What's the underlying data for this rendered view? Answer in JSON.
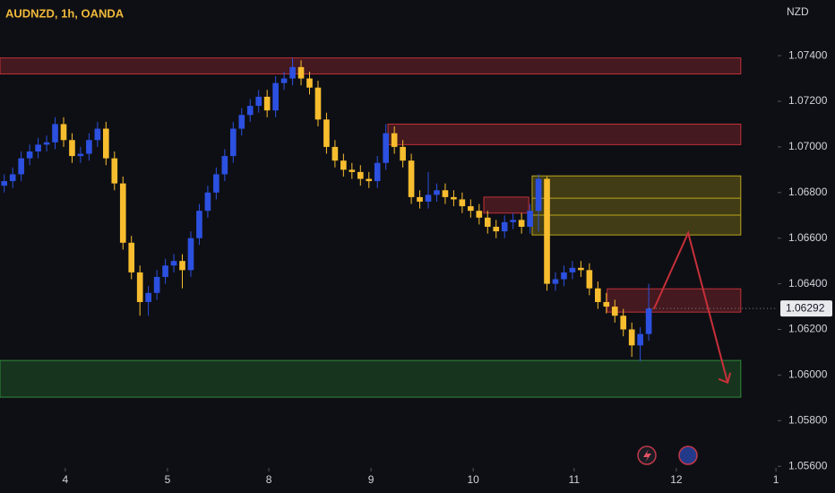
{
  "chart_data": {
    "type": "candlestick",
    "title": "AUDNZD, 1h, OANDA",
    "y_axis_label": "NZD",
    "up_color": "#2c50e0",
    "down_color": "#f7bd2e",
    "x": [
      0,
      2,
      4,
      6,
      8,
      10,
      12,
      14,
      16,
      18,
      20,
      22,
      24,
      26,
      28,
      30,
      32,
      34,
      36,
      38,
      40,
      42,
      44,
      46,
      48,
      50,
      52,
      54,
      56,
      58,
      60,
      62,
      64,
      66,
      68,
      70,
      72,
      74,
      76,
      78,
      80,
      82,
      84,
      86,
      88,
      90,
      92,
      94,
      96,
      98,
      100,
      102,
      104,
      106,
      108,
      110,
      112,
      114,
      116,
      118,
      120,
      122,
      124,
      126,
      128,
      130,
      132,
      134,
      136,
      138,
      140,
      142,
      144,
      146,
      148,
      150,
      152
    ],
    "open": [
      1.0683,
      1.0685,
      1.0688,
      1.0695,
      1.0698,
      1.0701,
      1.0702,
      1.071,
      1.0703,
      1.0696,
      1.0697,
      1.0703,
      1.0708,
      1.0695,
      1.0684,
      1.0658,
      1.0645,
      1.0632,
      1.0636,
      1.0643,
      1.0648,
      1.065,
      1.0646,
      1.066,
      1.0672,
      1.068,
      1.0688,
      1.0696,
      1.0708,
      1.0714,
      1.0718,
      1.0722,
      1.0716,
      1.0728,
      1.073,
      1.0735,
      1.073,
      1.0726,
      1.0712,
      1.07,
      1.0694,
      1.069,
      1.0689,
      1.0686,
      1.0685,
      1.0693,
      1.0706,
      1.07,
      1.0694,
      1.0678,
      1.0676,
      1.0679,
      1.0681,
      1.0678,
      1.0677,
      1.0674,
      1.0672,
      1.0669,
      1.0665,
      1.0663,
      1.0667,
      1.0668,
      1.0665,
      1.0672,
      1.0686,
      1.064,
      1.0642,
      1.0645,
      1.0647,
      1.0646,
      1.0638,
      1.0632,
      1.063,
      1.0626,
      1.062,
      1.0613,
      1.0618
    ],
    "high": [
      1.0688,
      1.0691,
      1.0698,
      1.0701,
      1.0704,
      1.0705,
      1.0713,
      1.0713,
      1.0706,
      1.07,
      1.0706,
      1.0711,
      1.0711,
      1.0698,
      1.0687,
      1.0661,
      1.0648,
      1.0639,
      1.0646,
      1.0651,
      1.0653,
      1.0653,
      1.0663,
      1.0675,
      1.0683,
      1.0691,
      1.0699,
      1.0711,
      1.0717,
      1.0721,
      1.0725,
      1.0725,
      1.0731,
      1.0733,
      1.0739,
      1.0738,
      1.0733,
      1.0729,
      1.0715,
      1.0703,
      1.0697,
      1.0693,
      1.0692,
      1.0689,
      1.0696,
      1.071,
      1.0709,
      1.0703,
      1.0697,
      1.0681,
      1.0689,
      1.0684,
      1.0684,
      1.0681,
      1.068,
      1.0677,
      1.0675,
      1.0672,
      1.0668,
      1.067,
      1.0671,
      1.0671,
      1.0675,
      1.0688,
      1.0687,
      1.0645,
      1.0648,
      1.065,
      1.065,
      1.0649,
      1.0641,
      1.0636,
      1.0633,
      1.0629,
      1.0623,
      1.0621,
      1.064
    ],
    "low": [
      1.068,
      1.0682,
      1.0685,
      1.0692,
      1.0695,
      1.0698,
      1.0699,
      1.07,
      1.0693,
      1.0693,
      1.0694,
      1.07,
      1.0692,
      1.0681,
      1.0655,
      1.0642,
      1.0626,
      1.0626,
      1.0633,
      1.064,
      1.0645,
      1.0638,
      1.0643,
      1.0657,
      1.0669,
      1.0677,
      1.0685,
      1.0693,
      1.0705,
      1.0711,
      1.0715,
      1.0713,
      1.0713,
      1.0725,
      1.0727,
      1.0727,
      1.0723,
      1.0709,
      1.0697,
      1.0691,
      1.0687,
      1.0686,
      1.0683,
      1.0682,
      1.0682,
      1.069,
      1.0697,
      1.0691,
      1.0675,
      1.0673,
      1.0673,
      1.0676,
      1.0675,
      1.0674,
      1.0671,
      1.0669,
      1.0666,
      1.0662,
      1.066,
      1.066,
      1.0664,
      1.0662,
      1.0662,
      1.0663,
      1.0637,
      1.0637,
      1.0639,
      1.0642,
      1.0643,
      1.0635,
      1.0629,
      1.0627,
      1.0623,
      1.0617,
      1.0608,
      1.0606,
      1.0615
    ],
    "close": [
      1.0685,
      1.0688,
      1.0695,
      1.0698,
      1.0701,
      1.0702,
      1.071,
      1.0703,
      1.0696,
      1.0697,
      1.0703,
      1.0708,
      1.0695,
      1.0684,
      1.0658,
      1.0645,
      1.0632,
      1.0636,
      1.0643,
      1.0648,
      1.065,
      1.0646,
      1.066,
      1.0672,
      1.068,
      1.0688,
      1.0696,
      1.0708,
      1.0714,
      1.0718,
      1.0722,
      1.0716,
      1.0728,
      1.073,
      1.0735,
      1.073,
      1.0726,
      1.0712,
      1.07,
      1.0694,
      1.069,
      1.0689,
      1.0686,
      1.0685,
      1.0693,
      1.0706,
      1.07,
      1.0694,
      1.0678,
      1.0676,
      1.0679,
      1.0681,
      1.0678,
      1.0677,
      1.0674,
      1.0672,
      1.0669,
      1.0665,
      1.0663,
      1.0667,
      1.0668,
      1.0665,
      1.0672,
      1.0686,
      1.064,
      1.0642,
      1.0645,
      1.0647,
      1.0646,
      1.0638,
      1.0632,
      1.063,
      1.0626,
      1.062,
      1.0613,
      1.0618,
      1.06292
    ],
    "xlim": [
      -1,
      182.4
    ],
    "ylim": [
      1.05593,
      1.07644
    ],
    "xticks": [
      {
        "value": 14.4,
        "label": "4"
      },
      {
        "value": 38.5,
        "label": "5"
      },
      {
        "value": 62.4,
        "label": "8"
      },
      {
        "value": 86.5,
        "label": "9"
      },
      {
        "value": 110.6,
        "label": "10"
      },
      {
        "value": 134.4,
        "label": "11"
      },
      {
        "value": 158.5,
        "label": "12"
      },
      {
        "value": 182,
        "label": "1"
      }
    ],
    "yticks": [
      {
        "value": 1.074,
        "label": "1.07400"
      },
      {
        "value": 1.072,
        "label": "1.07200"
      },
      {
        "value": 1.07,
        "label": "1.07000"
      },
      {
        "value": 1.068,
        "label": "1.06800"
      },
      {
        "value": 1.066,
        "label": "1.06600"
      },
      {
        "value": 1.064,
        "label": "1.06400"
      },
      {
        "value": 1.062,
        "label": "1.06200"
      },
      {
        "value": 1.06,
        "label": "1.06000"
      },
      {
        "value": 1.058,
        "label": "1.05800"
      },
      {
        "value": 1.056,
        "label": "1.05600"
      }
    ],
    "zones": [
      {
        "x": [
          -1,
          173.7
        ],
        "y": [
          1.0732,
          1.0739
        ],
        "color": "#c2313a"
      },
      {
        "x": [
          90.5,
          173.7
        ],
        "y": [
          1.0701,
          1.071
        ],
        "color": "#c2313a"
      },
      {
        "x": [
          113.1,
          123.7
        ],
        "y": [
          1.0671,
          1.0678
        ],
        "color": "#c2313a"
      },
      {
        "x": [
          124.5,
          173.7
        ],
        "y": [
          1.06614,
          1.06873
        ],
        "color": "#b9a51c"
      },
      {
        "x": [
          142.2,
          173.7
        ],
        "y": [
          1.06276,
          1.06378
        ],
        "color": "#c2313a"
      },
      {
        "x": [
          -1,
          173.7
        ],
        "y": [
          1.05903,
          1.06064
        ],
        "color": "#2e8b3a"
      }
    ],
    "zone_lines": [
      1.06775,
      1.06701
    ],
    "arrow": {
      "x": [
        153.2,
        161.3,
        170.6
      ],
      "y": [
        1.06289,
        1.06623,
        1.05967
      ],
      "color": "#c8303a"
    }
  }
}
